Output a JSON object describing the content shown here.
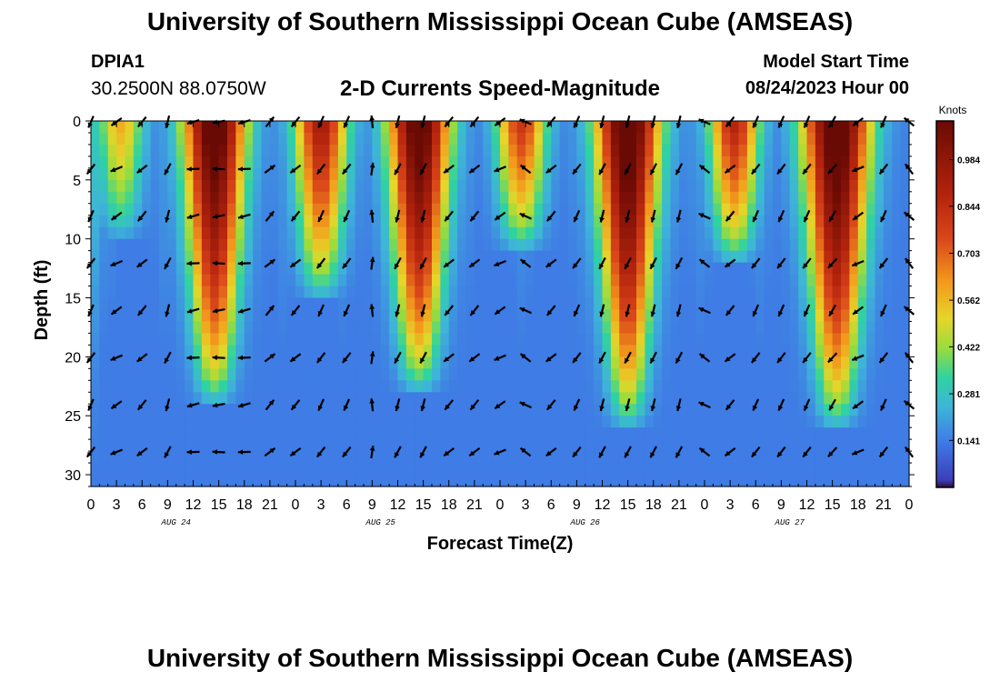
{
  "header": {
    "title": "University of Southern Mississippi Ocean Cube (AMSEAS)",
    "station_id": "DPIA1",
    "station_coords": "30.2500N  88.0750W",
    "chart_title": "2-D Currents Speed-Magnitude",
    "model_label": "Model Start Time",
    "model_date": "08/24/2023 Hour 00"
  },
  "footer": {
    "title": "University of Southern Mississippi Ocean Cube (AMSEAS)"
  },
  "chart_data": {
    "type": "heatmap",
    "title": "2-D Currents Speed-Magnitude",
    "xlabel": "Forecast Time(Z)",
    "ylabel": "Depth (ft)",
    "x_range_hours": [
      0,
      96
    ],
    "xtick_labels": [
      "0",
      "3",
      "6",
      "9",
      "12",
      "15",
      "18",
      "21",
      "0",
      "3",
      "6",
      "9",
      "12",
      "15",
      "18",
      "21",
      "0",
      "3",
      "6",
      "9",
      "12",
      "15",
      "18",
      "21",
      "0",
      "3",
      "6",
      "9",
      "12",
      "15",
      "18",
      "21",
      "0"
    ],
    "date_labels": [
      {
        "label": "AUG 24",
        "hour": 10
      },
      {
        "label": "AUG 25",
        "hour": 34
      },
      {
        "label": "AUG 26",
        "hour": 58
      },
      {
        "label": "AUG 27",
        "hour": 82
      }
    ],
    "ylim": [
      0,
      31
    ],
    "yticks": [
      0,
      5,
      10,
      15,
      20,
      25,
      30
    ],
    "colorbar": {
      "unit": "Knots",
      "min": 0,
      "max": 1.1,
      "ticks": [
        0.141,
        0.281,
        0.422,
        0.562,
        0.703,
        0.844,
        0.984
      ],
      "tick_labels": [
        "0.141",
        "0.281",
        "0.422",
        "0.562",
        "0.703",
        "0.844",
        "0.984"
      ]
    },
    "speed_peaks": [
      {
        "center_hour": -1.0,
        "half_width": 1.6,
        "amplitude": 0.4,
        "depth_ft": 31
      },
      {
        "center_hour": 3.5,
        "half_width": 2.6,
        "amplitude": 0.45,
        "depth_ft": 10
      },
      {
        "center_hour": 14.5,
        "half_width": 3.5,
        "amplitude": 1.08,
        "depth_ft": 24
      },
      {
        "center_hour": 27.0,
        "half_width": 3.0,
        "amplitude": 0.8,
        "depth_ft": 15
      },
      {
        "center_hour": 38.5,
        "half_width": 3.5,
        "amplitude": 1.05,
        "depth_ft": 23
      },
      {
        "center_hour": 50.5,
        "half_width": 2.8,
        "amplitude": 0.68,
        "depth_ft": 11
      },
      {
        "center_hour": 63.0,
        "half_width": 3.6,
        "amplitude": 1.1,
        "depth_ft": 26
      },
      {
        "center_hour": 75.5,
        "half_width": 2.8,
        "amplitude": 0.75,
        "depth_ft": 12
      },
      {
        "center_hour": 87.5,
        "half_width": 3.8,
        "amplitude": 1.1,
        "depth_ft": 26
      }
    ],
    "vector_depths_ft": [
      0,
      4,
      8,
      12,
      16,
      20,
      24,
      28
    ],
    "vector_hours": [
      0,
      3,
      6,
      9,
      12,
      15,
      18,
      21,
      24,
      27,
      30,
      33,
      36,
      39,
      42,
      45,
      48,
      51,
      54,
      57,
      60,
      63,
      66,
      69,
      72,
      75,
      78,
      81,
      84,
      87,
      90,
      93,
      96
    ],
    "vector_angles_deg": [
      210,
      240,
      225,
      200,
      260,
      265,
      260,
      45,
      225,
      210,
      210,
      0,
      200,
      200,
      225,
      225,
      240,
      300,
      225,
      210,
      200,
      200,
      200,
      200,
      300,
      225,
      210,
      210,
      210,
      215,
      240,
      210,
      315
    ]
  }
}
